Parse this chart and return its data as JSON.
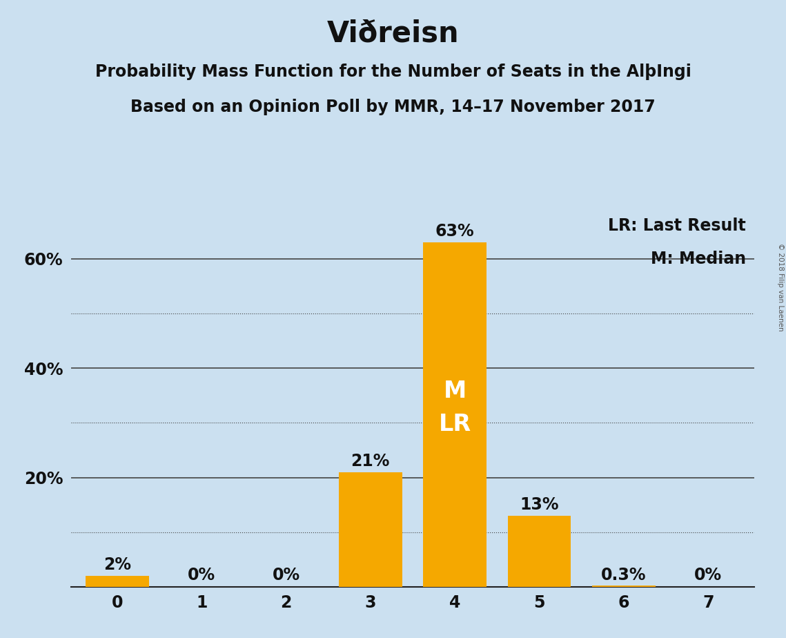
{
  "title": "Viðreisn",
  "subtitle1": "Probability Mass Function for the Number of Seats in the AlþIngi",
  "subtitle2": "Based on an Opinion Poll by MMR, 14–17 November 2017",
  "categories": [
    0,
    1,
    2,
    3,
    4,
    5,
    6,
    7
  ],
  "values": [
    0.02,
    0.0,
    0.0,
    0.21,
    0.63,
    0.13,
    0.003,
    0.0
  ],
  "bar_color": "#F5A800",
  "background_color": "#CBE0F0",
  "bar_labels": [
    "2%",
    "0%",
    "0%",
    "21%",
    "63%",
    "13%",
    "0.3%",
    "0%"
  ],
  "median_bar": 4,
  "lr_bar": 4,
  "legend_text1": "LR: Last Result",
  "legend_text2": "M: Median",
  "solid_grid_lines": [
    0.2,
    0.4,
    0.6
  ],
  "dotted_grid_lines": [
    0.1,
    0.3,
    0.5
  ],
  "ytick_positions": [
    0.2,
    0.4,
    0.6
  ],
  "ytick_labels": [
    "20%",
    "40%",
    "60%"
  ],
  "ylim": [
    0,
    0.7
  ],
  "xlim": [
    -0.55,
    7.55
  ],
  "copyright_text": "© 2018 Filip van Laenen",
  "title_fontsize": 30,
  "subtitle_fontsize": 17,
  "bar_label_fontsize": 17,
  "tick_fontsize": 17,
  "legend_fontsize": 17,
  "inside_label_fontsize": 24,
  "grid_color": "#444444",
  "axis_color": "#222222",
  "text_color": "#111111",
  "inside_label_color": "#ffffff"
}
